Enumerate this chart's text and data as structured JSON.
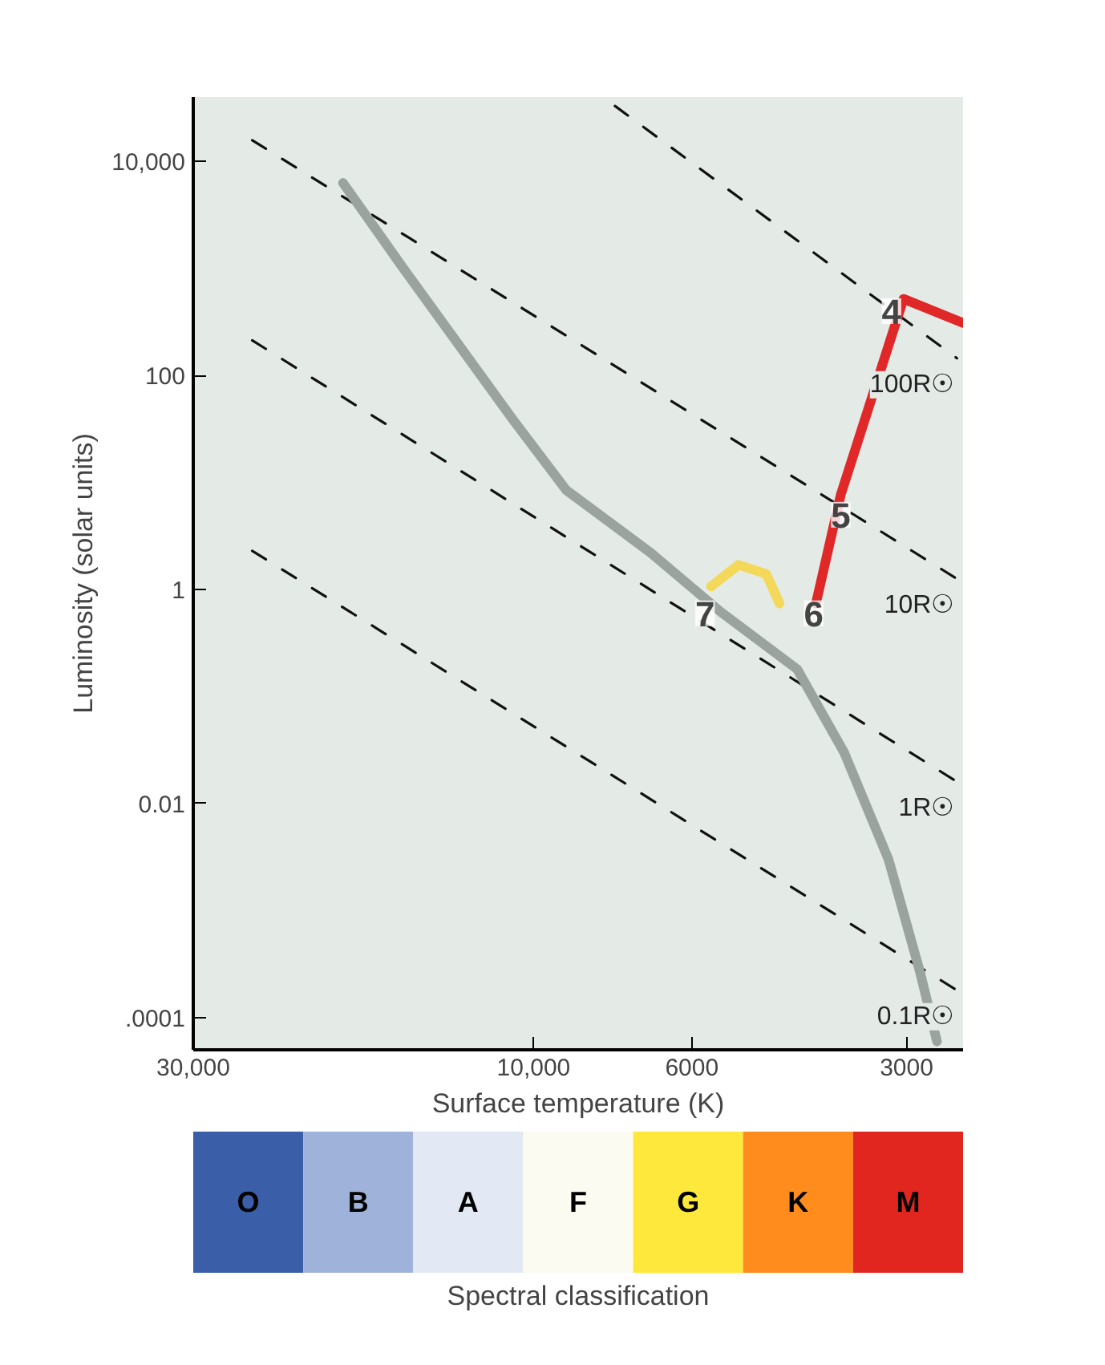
{
  "chart_data": [
    {
      "type": "line",
      "xlabel": "Surface temperature (K)",
      "ylabel": "Luminosity (solar units)",
      "log": "xy",
      "xlim": [
        30000,
        2500
      ],
      "ylim": [
        5e-05,
        40000
      ],
      "xticks": [
        {
          "value": 30000,
          "label": "30,000"
        },
        {
          "value": 10000,
          "label": "10,000"
        },
        6000,
        3000
      ],
      "yticks": [
        {
          "value": 10000,
          "label": "10,000"
        },
        100,
        1,
        0.01,
        {
          "value": 0.0001,
          "label": ".0001"
        }
      ],
      "grid": false,
      "marker": "none",
      "series": [
        {
          "name": "100R☉",
          "color": "#111111",
          "line_style": "dashed",
          "x": [
            7690,
            2550
          ],
          "values": [
            33000,
            145
          ]
        },
        {
          "name": "10R☉",
          "color": "#111111",
          "line_style": "dashed",
          "x": [
            24800,
            2550
          ],
          "values": [
            15800,
            1.26
          ]
        },
        {
          "name": "1R☉",
          "color": "#111111",
          "line_style": "dashed",
          "x": [
            24800,
            2550
          ],
          "values": [
            213,
            0.016
          ]
        },
        {
          "name": "0.1R☉",
          "color": "#111111",
          "line_style": "dashed",
          "x": [
            24800,
            2550
          ],
          "values": [
            2.3,
            0.00018
          ]
        },
        {
          "color": "#9aa39e",
          "line_style": "solid",
          "x": [
            18500,
            15300,
            10700,
            9000,
            6850,
            5470,
            4270,
            3670,
            3180,
            2870,
            2720
          ],
          "values": [
            6300,
            1050,
            39,
            8.5,
            2.2,
            0.62,
            0.18,
            0.03,
            0.003,
            0.00026,
            6e-05
          ]
        },
        {
          "color": "#e02828",
          "line_style": "solid",
          "x": [
            2500,
            3030,
            3710,
            4020
          ],
          "values": [
            310,
            520,
            7.7,
            0.74
          ]
        },
        {
          "color": "#f3d85a",
          "line_style": "solid",
          "x": [
            4520,
            4720,
            5160,
            5640
          ],
          "values": [
            0.74,
            1.4,
            1.7,
            1.07
          ]
        }
      ],
      "annotations": [
        {
          "text": "4",
          "x": 3150,
          "y": 400
        },
        {
          "text": "5",
          "x": 3710,
          "y": 5
        },
        {
          "text": "6",
          "x": 4050,
          "y": 0.6
        },
        {
          "text": "7",
          "x": 5750,
          "y": 0.6
        }
      ]
    },
    {
      "type": "other",
      "xlabel": "Spectral classification",
      "categories": [
        "O",
        "B",
        "A",
        "F",
        "G",
        "K",
        "M"
      ],
      "colors": [
        "#3a5ea8",
        "#9fb2da",
        "#e2e8f4",
        "#fbfbf2",
        "#ffe83c",
        "#ff8c1c",
        "#e0261e"
      ]
    }
  ]
}
